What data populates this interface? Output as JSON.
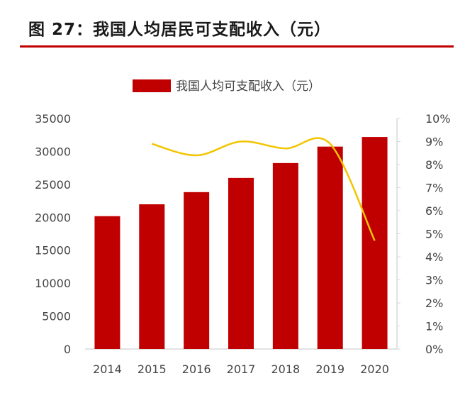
{
  "figure_title": "图 27：我国人均居民可支配收入（元）",
  "colors": {
    "bar": "#c00000",
    "line": "#f2c500",
    "rule": "#c00000",
    "axis": "#d9d9d9"
  },
  "chart_data": {
    "type": "bar",
    "categories": [
      "2014",
      "2015",
      "2016",
      "2017",
      "2018",
      "2019",
      "2020"
    ],
    "series": [
      {
        "name": "我国人均可支配收入（元）",
        "type": "bar",
        "axis": "left",
        "values": [
          20170,
          21970,
          23820,
          25970,
          28230,
          30730,
          32190
        ]
      },
      {
        "type": "line",
        "axis": "right",
        "values": [
          null,
          0.089,
          0.084,
          0.09,
          0.087,
          0.089,
          0.047
        ]
      }
    ],
    "ylim": [
      0,
      35000
    ],
    "y_ticks": [
      "0",
      "5000",
      "10000",
      "15000",
      "20000",
      "25000",
      "30000",
      "35000"
    ],
    "y2lim": [
      0,
      0.1
    ],
    "y2_ticks": [
      "0%",
      "1%",
      "2%",
      "3%",
      "4%",
      "5%",
      "6%",
      "7%",
      "8%",
      "9%",
      "10%"
    ],
    "legend": {
      "placement": "top",
      "label": "我国人均可支配收入（元）"
    },
    "grid": false
  }
}
